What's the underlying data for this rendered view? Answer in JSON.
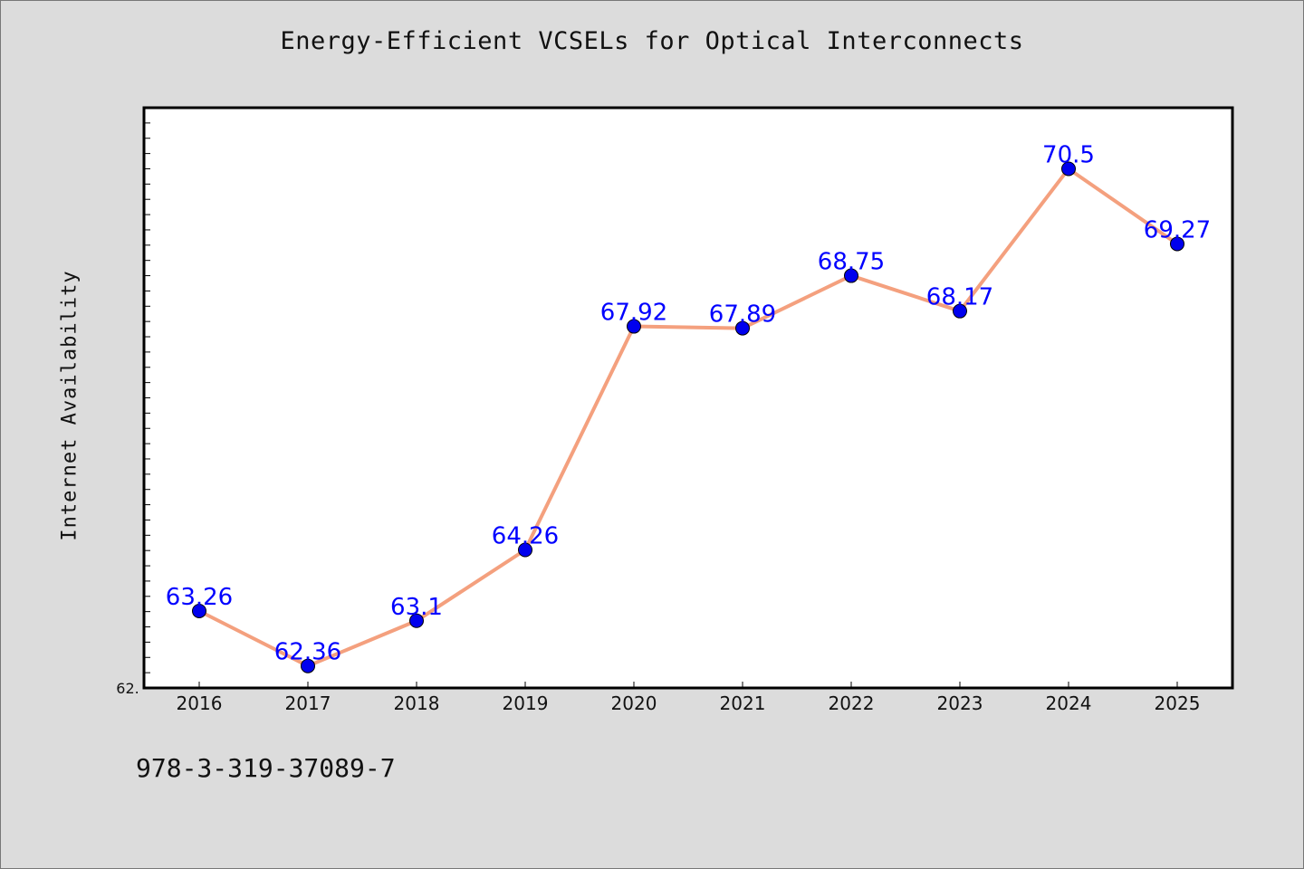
{
  "chart_data": {
    "type": "line",
    "title": "Energy-Efficient VCSELs for Optical Interconnects",
    "ylabel": "Internet Availability",
    "xlabel": "",
    "categories": [
      "2016",
      "2017",
      "2018",
      "2019",
      "2020",
      "2021",
      "2022",
      "2023",
      "2024",
      "2025"
    ],
    "series": [
      {
        "values": [
          63.26,
          62.36,
          63.1,
          64.26,
          67.92,
          67.89,
          68.75,
          68.17,
          70.5,
          69.27
        ],
        "data_labels": [
          "63.26",
          "62.36",
          "63.1",
          "64.26",
          "67.92",
          "67.89",
          "68.75",
          "68.17",
          "70.5",
          "69.27"
        ]
      }
    ],
    "ylim": [
      62.0,
      71.5
    ],
    "y_tick_label": "62.",
    "line_color": "#f4a07e",
    "marker_color": "#0000ee",
    "label_color": "#0000ff",
    "grid": false,
    "legend": "none"
  },
  "footer": {
    "isbn": "978-3-319-37089-7"
  }
}
